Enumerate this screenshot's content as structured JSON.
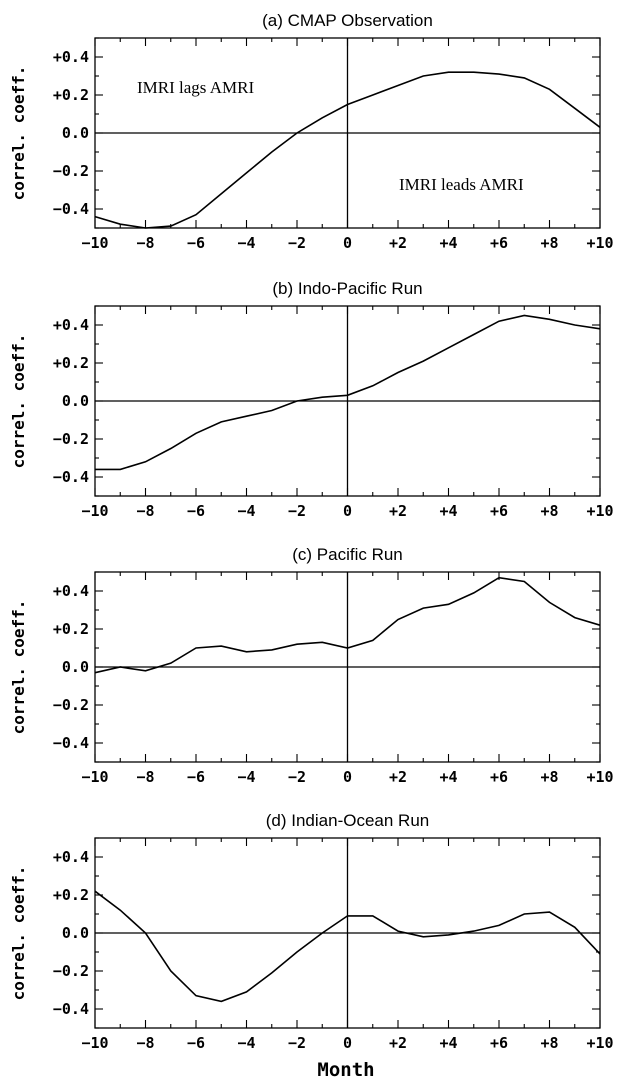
{
  "figure": {
    "xlabel": "Month"
  },
  "chart_data": [
    {
      "type": "line",
      "title": "(a) CMAP Observation",
      "ylabel": "correl. coeff.",
      "xlim": [
        -10,
        10
      ],
      "ylim": [
        -0.5,
        0.5
      ],
      "xticks": [
        "−10",
        "−8",
        "−6",
        "−4",
        "−2",
        "0",
        "+2",
        "+4",
        "+6",
        "+8",
        "+10"
      ],
      "yticks": [
        "+0.4",
        "+0.2",
        "0.0",
        "−0.2",
        "−0.4"
      ],
      "annotations": [
        "IMRI lags AMRI",
        "IMRI leads AMRI"
      ],
      "series": [
        {
          "x": [
            -10,
            -9,
            -8,
            -7,
            -6,
            -5,
            -4,
            -3,
            -2,
            -1,
            0,
            1,
            2,
            3,
            4,
            5,
            6,
            7,
            8,
            9,
            10
          ],
          "values": [
            -0.44,
            -0.48,
            -0.5,
            -0.49,
            -0.43,
            -0.32,
            -0.21,
            -0.1,
            0.0,
            0.08,
            0.15,
            0.2,
            0.25,
            0.3,
            0.32,
            0.32,
            0.31,
            0.29,
            0.23,
            0.13,
            0.03
          ]
        }
      ]
    },
    {
      "type": "line",
      "title": "(b) Indo-Pacific Run",
      "ylabel": "correl. coeff.",
      "xlim": [
        -10,
        10
      ],
      "ylim": [
        -0.5,
        0.5
      ],
      "xticks": [
        "−10",
        "−8",
        "−6",
        "−4",
        "−2",
        "0",
        "+2",
        "+4",
        "+6",
        "+8",
        "+10"
      ],
      "yticks": [
        "+0.4",
        "+0.2",
        "0.0",
        "−0.2",
        "−0.4"
      ],
      "series": [
        {
          "x": [
            -10,
            -9,
            -8,
            -7,
            -6,
            -5,
            -4,
            -3,
            -2,
            -1,
            0,
            1,
            2,
            3,
            4,
            5,
            6,
            7,
            8,
            9,
            10
          ],
          "values": [
            -0.36,
            -0.36,
            -0.32,
            -0.25,
            -0.17,
            -0.11,
            -0.08,
            -0.05,
            0.0,
            0.02,
            0.03,
            0.08,
            0.15,
            0.21,
            0.28,
            0.35,
            0.42,
            0.45,
            0.43,
            0.4,
            0.38
          ]
        }
      ]
    },
    {
      "type": "line",
      "title": "(c) Pacific Run",
      "ylabel": "correl. coeff.",
      "xlim": [
        -10,
        10
      ],
      "ylim": [
        -0.5,
        0.5
      ],
      "xticks": [
        "−10",
        "−8",
        "−6",
        "−4",
        "−2",
        "0",
        "+2",
        "+4",
        "+6",
        "+8",
        "+10"
      ],
      "yticks": [
        "+0.4",
        "+0.2",
        "0.0",
        "−0.2",
        "−0.4"
      ],
      "series": [
        {
          "x": [
            -10,
            -9,
            -8,
            -7,
            -6,
            -5,
            -4,
            -3,
            -2,
            -1,
            0,
            1,
            2,
            3,
            4,
            5,
            6,
            7,
            8,
            9,
            10
          ],
          "values": [
            -0.03,
            0.0,
            -0.02,
            0.02,
            0.1,
            0.11,
            0.08,
            0.09,
            0.12,
            0.13,
            0.1,
            0.14,
            0.25,
            0.31,
            0.33,
            0.39,
            0.47,
            0.45,
            0.34,
            0.26,
            0.22
          ]
        }
      ]
    },
    {
      "type": "line",
      "title": "(d) Indian-Ocean Run",
      "ylabel": "correl. coeff.",
      "xlim": [
        -10,
        10
      ],
      "ylim": [
        -0.5,
        0.5
      ],
      "xticks": [
        "−10",
        "−8",
        "−6",
        "−4",
        "−2",
        "0",
        "+2",
        "+4",
        "+6",
        "+8",
        "+10"
      ],
      "yticks": [
        "+0.4",
        "+0.2",
        "0.0",
        "−0.2",
        "−0.4"
      ],
      "series": [
        {
          "x": [
            -10,
            -9,
            -8,
            -7,
            -6,
            -5,
            -4,
            -3,
            -2,
            -1,
            0,
            1,
            2,
            3,
            4,
            5,
            6,
            7,
            8,
            9,
            10
          ],
          "values": [
            0.22,
            0.12,
            0.0,
            -0.2,
            -0.33,
            -0.36,
            -0.31,
            -0.21,
            -0.1,
            0.0,
            0.09,
            0.09,
            0.01,
            -0.02,
            -0.01,
            0.01,
            0.04,
            0.1,
            0.11,
            0.03,
            -0.11
          ]
        }
      ]
    }
  ]
}
